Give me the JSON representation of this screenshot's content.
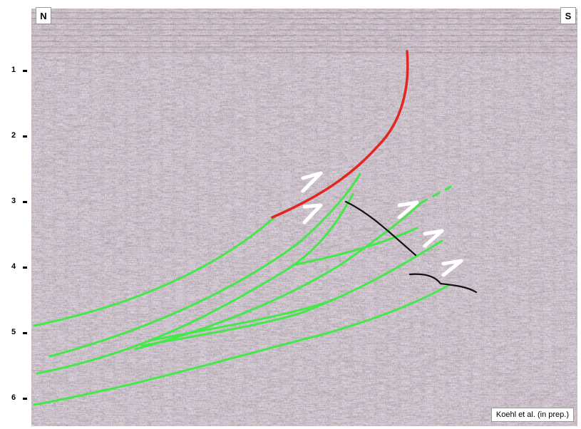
{
  "figure": {
    "left_label": "N",
    "right_label": "S",
    "credit": "Koehl et al. (in prep.)"
  },
  "depth_axis": {
    "ticks": [
      "1",
      "2",
      "3",
      "4",
      "5",
      "6"
    ],
    "values": [
      1,
      2,
      3,
      4,
      5,
      6
    ]
  },
  "colors": {
    "main_fault": "#e3261f",
    "splay_faults": "#45e84a",
    "cross_cutting_faults": "#111111",
    "sense_arrows": "#ffffff",
    "seismic_tint": "#b0a79c"
  }
}
